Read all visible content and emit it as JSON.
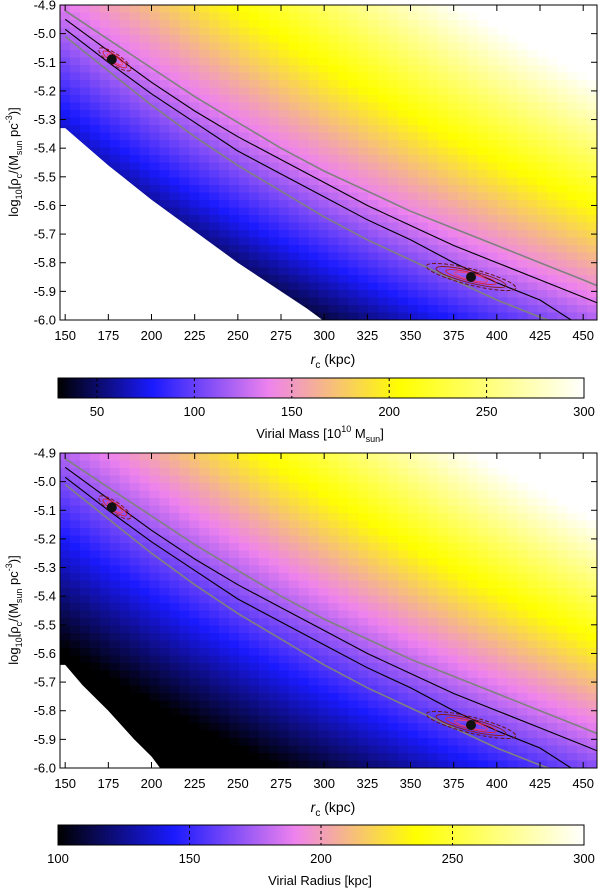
{
  "chart_data": [
    {
      "type": "heatmap",
      "panel": "top",
      "xlabel_symbol": "r",
      "xlabel_sub": "c",
      "xlabel_unit": "(kpc)",
      "ylabel_prefix": "log",
      "ylabel_sub1": "10",
      "ylabel_body1": "[ρ",
      "ylabel_sub2": "c",
      "ylabel_body2": "/(M",
      "ylabel_sub3": "sun",
      "ylabel_body3": " pc",
      "ylabel_sup": "-3",
      "ylabel_close": ")]",
      "xlim": [
        147,
        458
      ],
      "ylim": [
        -6.0,
        -4.9
      ],
      "xticks": [
        150,
        175,
        200,
        225,
        250,
        275,
        300,
        325,
        350,
        375,
        400,
        425,
        450
      ],
      "yticks": [
        -4.9,
        -5.0,
        -5.1,
        -5.2,
        -5.3,
        -5.4,
        -5.5,
        -5.6,
        -5.7,
        -5.8,
        -5.9,
        -6.0
      ],
      "ytick_labels": [
        "-4.9",
        "-5.0",
        "-5.1",
        "-5.2",
        "-5.3",
        "-5.4",
        "-5.5",
        "-5.6",
        "-5.7",
        "-5.8",
        "-5.9",
        "-6.0"
      ],
      "colorbar": {
        "label_main": "Virial Mass [10",
        "label_sup": "10",
        "label_mid": " M",
        "label_sub": "sun",
        "label_close": "]",
        "range": [
          30,
          300
        ],
        "ticks": [
          50,
          100,
          150,
          200,
          250,
          300
        ],
        "stops": [
          "#000000",
          "#1a1aff",
          "#ee82ee",
          "#ffff00",
          "#ffffff"
        ],
        "stop_values": [
          0,
          0.18,
          0.4,
          0.65,
          1
        ]
      },
      "mask_lower_boundary": [
        [
          150,
          -5.33
        ],
        [
          175,
          -5.46
        ],
        [
          200,
          -5.58
        ],
        [
          225,
          -5.69
        ],
        [
          250,
          -5.8
        ],
        [
          275,
          -5.9
        ],
        [
          290,
          -5.96
        ],
        [
          299,
          -6.0
        ]
      ],
      "markers": [
        {
          "name": "lower-solution",
          "x": 177,
          "y": -5.09
        },
        {
          "name": "upper-solution",
          "x": 385,
          "y": -5.85
        }
      ]
    },
    {
      "type": "heatmap",
      "panel": "bottom",
      "xlabel_symbol": "r",
      "xlabel_sub": "c",
      "xlabel_unit": "(kpc)",
      "ylabel_prefix": "log",
      "ylabel_sub1": "10",
      "ylabel_body1": "[ρ",
      "ylabel_sub2": "c",
      "ylabel_body2": "/(M",
      "ylabel_sub3": "sun",
      "ylabel_body3": " pc",
      "ylabel_sup": "-3",
      "ylabel_close": ")]",
      "xlim": [
        147,
        458
      ],
      "ylim": [
        -6.0,
        -4.9
      ],
      "xticks": [
        150,
        175,
        200,
        225,
        250,
        275,
        300,
        325,
        350,
        375,
        400,
        425,
        450
      ],
      "yticks": [
        -4.9,
        -5.0,
        -5.1,
        -5.2,
        -5.3,
        -5.4,
        -5.5,
        -5.6,
        -5.7,
        -5.8,
        -5.9,
        -6.0
      ],
      "ytick_labels": [
        "-4.9",
        "-5.0",
        "-5.1",
        "-5.2",
        "-5.3",
        "-5.4",
        "-5.5",
        "-5.6",
        "-5.7",
        "-5.8",
        "-5.9",
        "-6.0"
      ],
      "colorbar": {
        "label_main": "Virial Radius [kpc]",
        "label_sup": "",
        "label_mid": "",
        "label_sub": "",
        "label_close": "",
        "range": [
          100,
          300
        ],
        "ticks": [
          100,
          150,
          200,
          250,
          300
        ],
        "stops": [
          "#000000",
          "#1a1aff",
          "#ee82ee",
          "#ffff00",
          "#ffffff"
        ],
        "stop_values": [
          0,
          0.22,
          0.45,
          0.68,
          1
        ]
      },
      "mask_lower_boundary": [
        [
          150,
          -5.64
        ],
        [
          160,
          -5.71
        ],
        [
          175,
          -5.8
        ],
        [
          190,
          -5.9
        ],
        [
          200,
          -5.96
        ],
        [
          205,
          -6.0
        ]
      ],
      "markers": [
        {
          "name": "lower-solution",
          "x": 177,
          "y": -5.09
        },
        {
          "name": "upper-solution",
          "x": 385,
          "y": -5.85
        }
      ]
    }
  ],
  "curves": {
    "black_solid": [
      [
        150,
        -4.985
      ],
      [
        175,
        -5.1
      ],
      [
        200,
        -5.21
      ],
      [
        225,
        -5.31
      ],
      [
        250,
        -5.41
      ],
      [
        275,
        -5.49
      ],
      [
        300,
        -5.57
      ],
      [
        325,
        -5.65
      ],
      [
        350,
        -5.72
      ],
      [
        375,
        -5.8
      ],
      [
        400,
        -5.87
      ],
      [
        425,
        -5.93
      ],
      [
        443,
        -6.0
      ]
    ],
    "black_upper": [
      [
        150,
        -4.95
      ],
      [
        175,
        -5.06
      ],
      [
        200,
        -5.17
      ],
      [
        225,
        -5.27
      ],
      [
        250,
        -5.36
      ],
      [
        275,
        -5.44
      ],
      [
        300,
        -5.52
      ],
      [
        325,
        -5.6
      ],
      [
        350,
        -5.67
      ],
      [
        375,
        -5.74
      ],
      [
        400,
        -5.8
      ],
      [
        425,
        -5.86
      ],
      [
        450,
        -5.92
      ],
      [
        458,
        -5.94
      ]
    ],
    "gray_upper": [
      [
        150,
        -4.92
      ],
      [
        175,
        -5.02
      ],
      [
        200,
        -5.12
      ],
      [
        225,
        -5.22
      ],
      [
        250,
        -5.31
      ],
      [
        275,
        -5.4
      ],
      [
        300,
        -5.48
      ],
      [
        325,
        -5.55
      ],
      [
        350,
        -5.62
      ],
      [
        375,
        -5.68
      ],
      [
        400,
        -5.74
      ],
      [
        425,
        -5.8
      ],
      [
        450,
        -5.86
      ],
      [
        458,
        -5.88
      ]
    ],
    "gray_lower": [
      [
        150,
        -5.01
      ],
      [
        175,
        -5.13
      ],
      [
        200,
        -5.25
      ],
      [
        225,
        -5.36
      ],
      [
        250,
        -5.46
      ],
      [
        275,
        -5.55
      ],
      [
        300,
        -5.64
      ],
      [
        325,
        -5.72
      ],
      [
        350,
        -5.79
      ],
      [
        375,
        -5.86
      ],
      [
        400,
        -5.93
      ],
      [
        425,
        -5.99
      ],
      [
        430,
        -6.0
      ]
    ]
  }
}
